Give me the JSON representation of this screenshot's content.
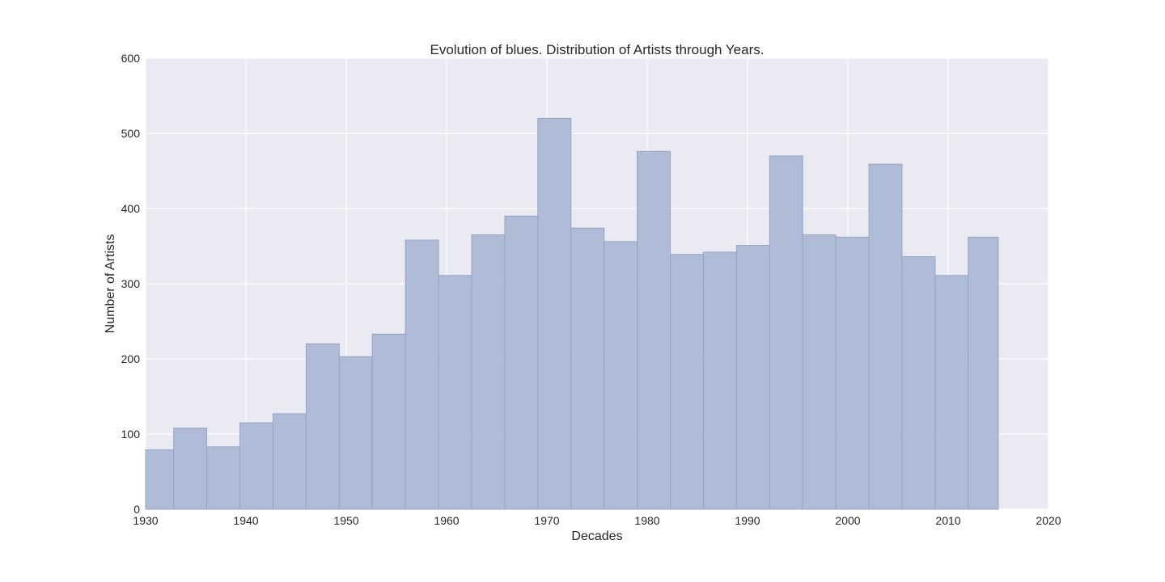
{
  "chart_data": {
    "type": "bar",
    "title": "Evolution of blues. Distribution of Artists through Years.",
    "xlabel": "Decades",
    "ylabel": "Number of Artists",
    "xlim": [
      1930,
      2020
    ],
    "ylim": [
      0,
      600
    ],
    "xticks": [
      1930,
      1940,
      1950,
      1960,
      1970,
      1980,
      1990,
      2000,
      2010,
      2020
    ],
    "yticks": [
      0,
      100,
      200,
      300,
      400,
      500,
      600
    ],
    "grid": true,
    "legend": "none",
    "bin_edges": [
      1930,
      1932.8,
      1936.1,
      1939.4,
      1942.7,
      1946.0,
      1949.3,
      1952.6,
      1955.9,
      1959.2,
      1962.5,
      1965.8,
      1969.1,
      1972.4,
      1975.7,
      1979.0,
      1982.3,
      1985.6,
      1988.9,
      1992.2,
      1995.5,
      1998.8,
      2002.1,
      2005.4,
      2008.7,
      2012.0,
      2015.0
    ],
    "values": [
      79,
      108,
      83,
      115,
      127,
      220,
      203,
      233,
      358,
      311,
      365,
      390,
      520,
      374,
      356,
      476,
      339,
      342,
      351,
      470,
      365,
      362,
      459,
      336,
      311,
      362
    ],
    "colors": {
      "plot_background": "#EAEAF2",
      "grid": "#ffffff",
      "bar_fill": "#A9B7D6",
      "bar_edge": "#97A4BF"
    }
  }
}
